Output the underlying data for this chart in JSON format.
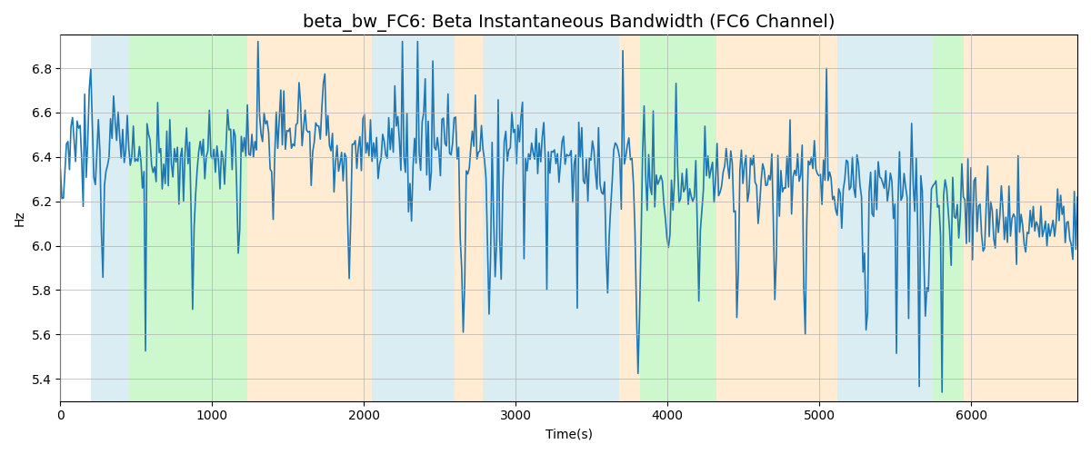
{
  "title": "beta_bw_FC6: Beta Instantaneous Bandwidth (FC6 Channel)",
  "xlabel": "Time(s)",
  "ylabel": "Hz",
  "xlim": [
    0,
    6700
  ],
  "ylim": [
    5.3,
    6.95
  ],
  "yticks": [
    5.4,
    5.6,
    5.8,
    6.0,
    6.2,
    6.4,
    6.6,
    6.8
  ],
  "xticks": [
    0,
    1000,
    2000,
    3000,
    4000,
    5000,
    6000
  ],
  "line_color": "#1f77b4",
  "line_width": 1.2,
  "bg_regions": [
    {
      "xmin": 200,
      "xmax": 450,
      "color": "#add8e6",
      "alpha": 0.45
    },
    {
      "xmin": 450,
      "xmax": 1230,
      "color": "#90ee90",
      "alpha": 0.45
    },
    {
      "xmin": 1230,
      "xmax": 2050,
      "color": "#ffd59e",
      "alpha": 0.45
    },
    {
      "xmin": 2050,
      "xmax": 2600,
      "color": "#add8e6",
      "alpha": 0.45
    },
    {
      "xmin": 2600,
      "xmax": 2780,
      "color": "#ffd59e",
      "alpha": 0.45
    },
    {
      "xmin": 2780,
      "xmax": 3680,
      "color": "#add8e6",
      "alpha": 0.45
    },
    {
      "xmin": 3680,
      "xmax": 3820,
      "color": "#ffd59e",
      "alpha": 0.45
    },
    {
      "xmin": 3820,
      "xmax": 4320,
      "color": "#90ee90",
      "alpha": 0.45
    },
    {
      "xmin": 4320,
      "xmax": 4520,
      "color": "#ffd59e",
      "alpha": 0.45
    },
    {
      "xmin": 4520,
      "xmax": 5120,
      "color": "#ffd59e",
      "alpha": 0.45
    },
    {
      "xmin": 5120,
      "xmax": 5750,
      "color": "#add8e6",
      "alpha": 0.45
    },
    {
      "xmin": 5750,
      "xmax": 5950,
      "color": "#90ee90",
      "alpha": 0.45
    },
    {
      "xmin": 5950,
      "xmax": 6700,
      "color": "#ffd59e",
      "alpha": 0.45
    }
  ],
  "grid": true,
  "grid_color": "#b0b0b0",
  "grid_linewidth": 0.5,
  "figsize": [
    12,
    5
  ],
  "dpi": 100,
  "n_points": 670,
  "signal_mean": 6.35,
  "signal_std_slow": 0.12,
  "signal_std_fast": 0.1,
  "title_fontsize": 14
}
